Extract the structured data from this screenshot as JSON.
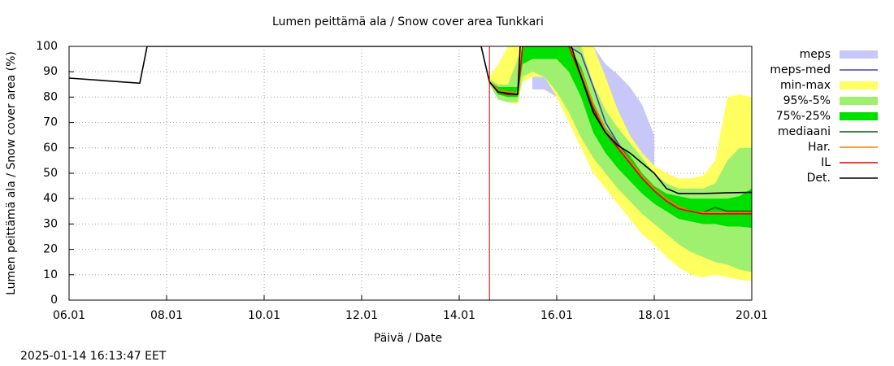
{
  "chart_data": {
    "type": "line",
    "title": "Lumen peittämä ala / Snow cover area Tunkkari",
    "xlabel": "Päivä / Date",
    "ylabel": "Lumen peittämä ala / Snow cover area (%)",
    "footer": "2025-01-14 16:13:47 EET",
    "xlim": [
      6,
      20
    ],
    "xticks": [
      {
        "value": 6,
        "label": "06.01"
      },
      {
        "value": 8,
        "label": "08.01"
      },
      {
        "value": 10,
        "label": "10.01"
      },
      {
        "value": 12,
        "label": "12.01"
      },
      {
        "value": 14,
        "label": "14.01"
      },
      {
        "value": 16,
        "label": "16.01"
      },
      {
        "value": 18,
        "label": "18.01"
      },
      {
        "value": 20,
        "label": "20.01"
      }
    ],
    "ylim": [
      0,
      100
    ],
    "yticks": [
      0,
      10,
      20,
      30,
      40,
      50,
      60,
      70,
      80,
      90,
      100
    ],
    "grid": true,
    "legend": "right",
    "vline": {
      "x": 14.62,
      "color": "#e00000"
    },
    "x": [
      14.62,
      14.8,
      15.0,
      15.2,
      15.3,
      15.5,
      15.75,
      16,
      16.25,
      16.5,
      16.75,
      17,
      17.25,
      17.5,
      17.75,
      18,
      18.25,
      18.5,
      18.75,
      19,
      19.25,
      19.5,
      19.75,
      20
    ],
    "series": [
      {
        "name": "meps",
        "kind": "band",
        "color": "#c8c8f8",
        "x": [
          15.5,
          15.75,
          16,
          16.25,
          16.5,
          16.75,
          17,
          17.25,
          17.5,
          17.75,
          18
        ],
        "high": [
          100,
          100,
          100,
          100,
          100,
          100,
          93,
          89,
          84,
          77,
          65
        ],
        "low": [
          83,
          83,
          80,
          72,
          62,
          52,
          46,
          40,
          35,
          31,
          28
        ]
      },
      {
        "name": "meps-med",
        "kind": "line",
        "color": "#4040c0",
        "x": [
          15.5,
          15.75,
          16,
          16.25,
          16.5,
          16.75,
          17,
          17.25,
          17.5,
          17.75,
          18
        ],
        "values": [
          100,
          100,
          100,
          100,
          97,
          84,
          70,
          62,
          55,
          49,
          44
        ]
      },
      {
        "name": "min-max",
        "kind": "band",
        "color": "#ffff60",
        "high": [
          88,
          93,
          100,
          100,
          100,
          100,
          100,
          100,
          100,
          100,
          100,
          88,
          75,
          65,
          58,
          53,
          50,
          48,
          48,
          49,
          55,
          80,
          81,
          80
        ],
        "low": [
          85,
          80,
          78,
          77,
          86,
          88,
          88,
          80,
          70,
          60,
          50,
          44,
          38,
          32,
          26,
          22,
          17,
          13,
          10,
          9,
          10,
          9,
          8,
          7.5
        ]
      },
      {
        "name": "95%-5%",
        "kind": "band",
        "color": "#a0f070",
        "high": [
          87,
          85,
          85,
          95,
          100,
          100,
          100,
          100,
          100,
          100,
          85,
          75,
          68,
          62,
          56,
          50,
          46,
          44,
          44,
          44,
          46,
          55,
          60,
          60
        ],
        "low": [
          85,
          79,
          78,
          78,
          88,
          90,
          88,
          82,
          74,
          64,
          56,
          50,
          44,
          39,
          34,
          30,
          26,
          22,
          19,
          17,
          15,
          14,
          12,
          11
        ]
      },
      {
        "name": "75%-25%",
        "kind": "band",
        "color": "#00e000",
        "high": [
          86,
          84,
          84,
          84,
          100,
          100,
          100,
          100,
          100,
          92,
          78,
          68,
          62,
          57,
          50,
          45,
          42,
          41,
          40,
          40,
          40,
          40,
          41,
          44
        ],
        "low": [
          86,
          81,
          80,
          80,
          93,
          95,
          95,
          95,
          90,
          80,
          66,
          58,
          52,
          47,
          42,
          38,
          35,
          32,
          31,
          30,
          30,
          29,
          29,
          28.5
        ]
      },
      {
        "name": "mediaani",
        "kind": "line",
        "color": "#006000",
        "values": [
          86,
          83,
          82,
          82,
          100,
          100,
          100,
          100,
          100,
          89,
          76,
          67,
          61,
          55,
          49,
          44,
          40,
          37,
          35,
          34.5,
          36.5,
          35,
          35,
          35
        ]
      },
      {
        "name": "Har.",
        "kind": "line",
        "color": "#ff8000",
        "values": [
          86,
          83,
          82,
          82,
          100,
          100,
          100,
          100,
          100,
          90,
          77,
          67,
          61,
          55,
          49,
          44,
          40,
          37,
          35,
          34.5,
          34.5,
          34.5,
          34.5,
          34.5
        ]
      },
      {
        "name": "IL",
        "kind": "line",
        "color": "#e00000",
        "values": [
          86,
          82,
          81,
          81,
          100,
          100,
          100,
          100,
          100,
          88,
          75,
          66,
          60,
          54,
          48,
          43,
          39,
          36,
          35,
          34,
          34,
          34,
          34,
          34
        ]
      },
      {
        "name": "Det.",
        "kind": "line",
        "color": "#000000",
        "x": [
          6,
          7.45,
          7.6,
          14.45,
          14.62,
          14.8,
          15.2,
          15.25,
          16.3,
          16.5,
          16.75,
          17,
          17.25,
          17.5,
          17.75,
          18,
          18.25,
          18.5,
          19,
          19.5,
          20
        ],
        "values": [
          87.5,
          85.5,
          100,
          100,
          86,
          82,
          81,
          100,
          100,
          88,
          74,
          66,
          61,
          58,
          54,
          50,
          44,
          42,
          42,
          42.3,
          42.5
        ]
      }
    ]
  }
}
